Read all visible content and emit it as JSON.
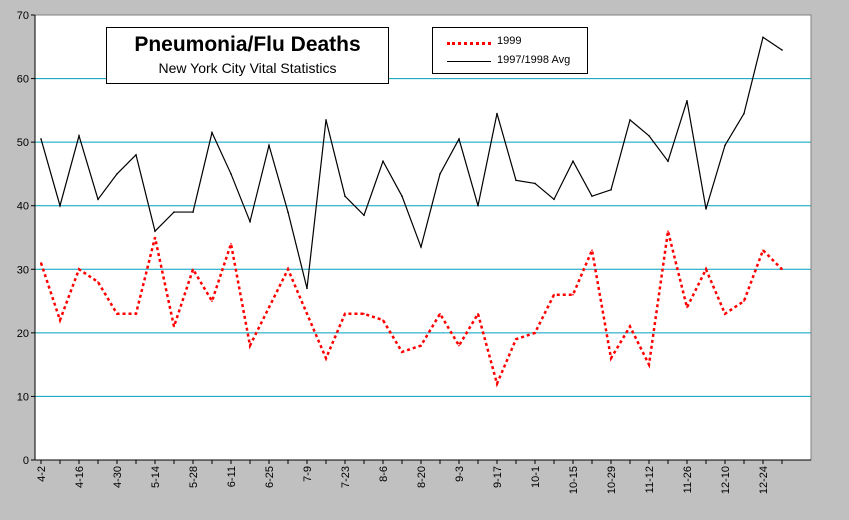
{
  "chart_data": {
    "type": "line",
    "title": "Pneumonia/Flu Deaths",
    "subtitle": "New York City Vital Statistics",
    "xlabel": "",
    "ylabel": "",
    "ylim": [
      0,
      70
    ],
    "yticks": [
      0,
      10,
      20,
      30,
      40,
      50,
      60,
      70
    ],
    "grid": "horizontal",
    "legend_placement": "top",
    "x_tick_labels": [
      "4-2",
      "4-16",
      "4-30",
      "5-14",
      "5-28",
      "6-11",
      "6-25",
      "7-9",
      "7-23",
      "8-6",
      "8-20",
      "9-3",
      "9-17",
      "10-1",
      "10-15",
      "10-29",
      "11-12",
      "11-26",
      "12-10",
      "12-24"
    ],
    "series": [
      {
        "name": "1999",
        "color": "#ff0000",
        "style": "dotted",
        "values": [
          31,
          22,
          30,
          28,
          23,
          23,
          35,
          21,
          30,
          25,
          34,
          18,
          24,
          30,
          23,
          16,
          23,
          23,
          22,
          17,
          18,
          23,
          18,
          23,
          12,
          19,
          20,
          26,
          26,
          33,
          16,
          21,
          15,
          36,
          24,
          30,
          23,
          25,
          33,
          30
        ]
      },
      {
        "name": "1997/1998 Avg",
        "color": "#000000",
        "style": "solid",
        "values": [
          50.5,
          40,
          51,
          41,
          45,
          48,
          36,
          39,
          39,
          51.5,
          45,
          37.5,
          49.5,
          39,
          27,
          53.5,
          41.5,
          38.5,
          47,
          41.5,
          33.5,
          45,
          50.5,
          40,
          54.5,
          44,
          43.5,
          41,
          47,
          41.5,
          42.5,
          53.5,
          51,
          47,
          56.5,
          39.5,
          49.5,
          54.5,
          66.5,
          64.5
        ]
      }
    ]
  },
  "colors": {
    "plot_background": "#ffffff",
    "outer_background": "#c0c0c0",
    "gridline": "#00a0c0"
  }
}
